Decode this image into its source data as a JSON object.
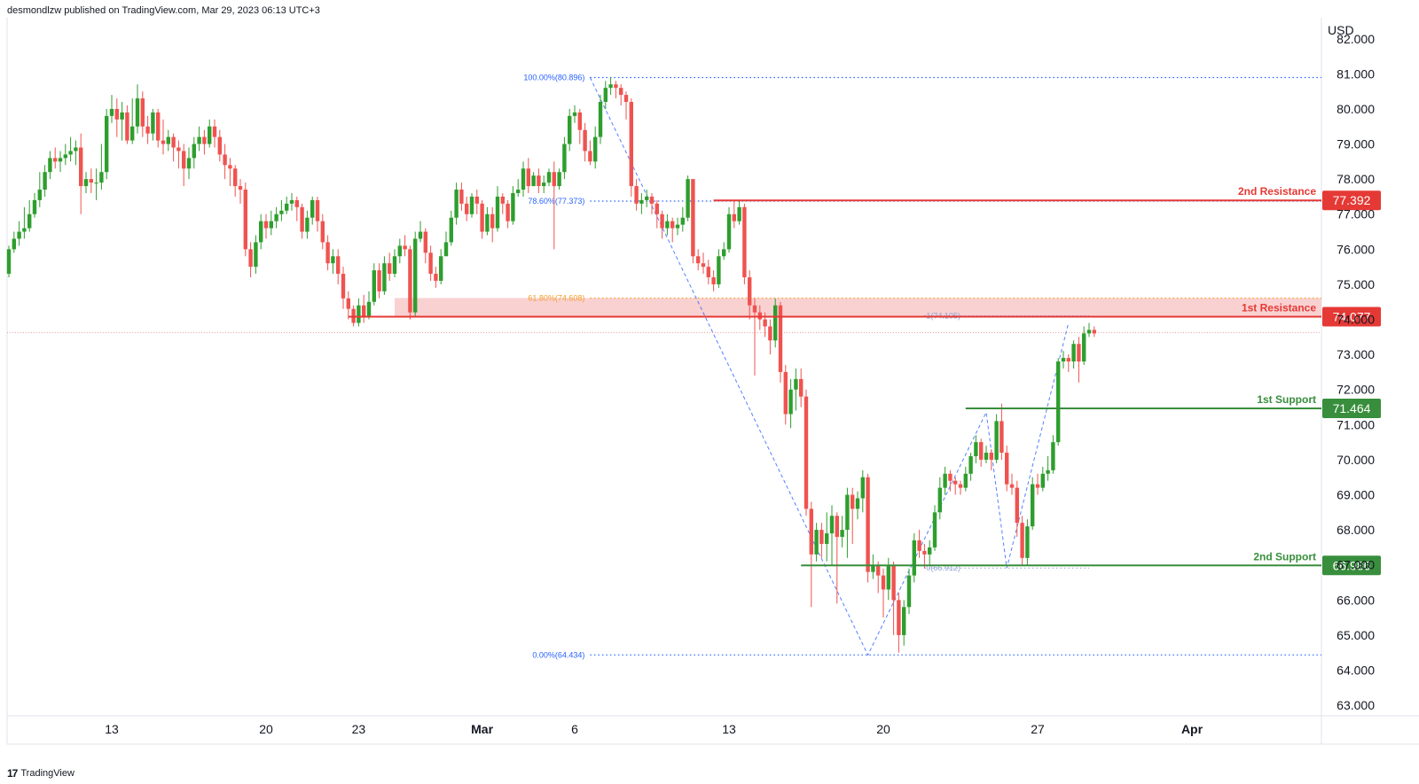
{
  "header": {
    "publisher_line": "desmondlzw published on TradingView.com, Mar 29, 2023 06:13 UTC+3"
  },
  "footer": {
    "brand": "TradingView",
    "brand_icon": "tradingview-logo-icon"
  },
  "colors": {
    "up": "#26a69a",
    "up_body": "#2e9e2e",
    "down": "#ef5350",
    "resistance": "#e53935",
    "support": "#388e3c",
    "fib": "#2962ff",
    "fib618": "#f59d2a",
    "zone": "#f8c9c9",
    "grid": "#e0e3eb"
  },
  "chart_data": {
    "type": "candlestick",
    "currency_label": "USD",
    "y_ticks": [
      82,
      81,
      80,
      79,
      78,
      77,
      76,
      75,
      74,
      73,
      72,
      71,
      70,
      69,
      68,
      67,
      66,
      65,
      64,
      63
    ],
    "y_tick_labels": [
      "82.000",
      "81.000",
      "80.000",
      "79.000",
      "78.000",
      "77.000",
      "76.000",
      "75.000",
      "74.000",
      "73.000",
      "72.000",
      "71.000",
      "70.000",
      "69.000",
      "68.000",
      "67.000",
      "66.000",
      "65.000",
      "64.000",
      "63.000"
    ],
    "ylim": [
      62.7,
      82.6
    ],
    "x_ticks": [
      {
        "label": "13",
        "bar": 20
      },
      {
        "label": "20",
        "bar": 50
      },
      {
        "label": "23",
        "bar": 68
      },
      {
        "label": "Mar",
        "bar": 92,
        "bold": true
      },
      {
        "label": "6",
        "bar": 110
      },
      {
        "label": "13",
        "bar": 140
      },
      {
        "label": "20",
        "bar": 170
      },
      {
        "label": "27",
        "bar": 200
      },
      {
        "label": "Apr",
        "bar": 230,
        "bold": true
      }
    ],
    "candles": [
      [
        76.0,
        75.3,
        76.1,
        75.2
      ],
      [
        76.3,
        76.0,
        76.5,
        75.9
      ],
      [
        76.5,
        76.3,
        76.8,
        76.1
      ],
      [
        76.6,
        76.5,
        77.2,
        76.3
      ],
      [
        77.0,
        76.6,
        77.4,
        76.5
      ],
      [
        77.4,
        77.0,
        77.6,
        76.9
      ],
      [
        77.7,
        77.4,
        78.2,
        77.2
      ],
      [
        78.2,
        77.7,
        78.4,
        77.5
      ],
      [
        78.6,
        78.2,
        78.8,
        78.0
      ],
      [
        78.5,
        78.6,
        78.9,
        78.3
      ],
      [
        78.6,
        78.5,
        78.8,
        78.2
      ],
      [
        78.7,
        78.6,
        79.0,
        78.4
      ],
      [
        78.8,
        78.7,
        79.2,
        78.5
      ],
      [
        78.9,
        78.8,
        79.1,
        78.4
      ],
      [
        77.8,
        78.9,
        79.3,
        77.0
      ],
      [
        78.0,
        77.8,
        78.2,
        77.6
      ],
      [
        77.9,
        78.0,
        78.3,
        77.6
      ],
      [
        77.9,
        77.9,
        78.3,
        77.4
      ],
      [
        78.2,
        77.9,
        79.0,
        77.7
      ],
      [
        79.8,
        78.2,
        80.0,
        78.0
      ],
      [
        80.0,
        79.8,
        80.4,
        79.6
      ],
      [
        79.7,
        80.0,
        80.3,
        79.2
      ],
      [
        79.9,
        79.7,
        80.2,
        79.1
      ],
      [
        79.1,
        79.9,
        80.1,
        79.0
      ],
      [
        79.5,
        79.1,
        80.3,
        79.0
      ],
      [
        80.3,
        79.5,
        80.7,
        79.3
      ],
      [
        79.5,
        80.3,
        80.5,
        79.2
      ],
      [
        79.3,
        79.5,
        79.8,
        79.0
      ],
      [
        79.9,
        79.3,
        80.0,
        79.1
      ],
      [
        79.1,
        79.9,
        80.0,
        78.9
      ],
      [
        79.0,
        79.1,
        79.7,
        78.7
      ],
      [
        79.2,
        79.0,
        79.4,
        78.8
      ],
      [
        78.9,
        79.2,
        79.3,
        78.5
      ],
      [
        78.8,
        78.9,
        79.1,
        78.3
      ],
      [
        78.3,
        78.8,
        79.0,
        77.8
      ],
      [
        78.6,
        78.3,
        78.9,
        78.0
      ],
      [
        79.0,
        78.6,
        79.2,
        78.3
      ],
      [
        79.2,
        79.0,
        79.5,
        78.8
      ],
      [
        79.0,
        79.2,
        79.4,
        78.7
      ],
      [
        79.5,
        79.0,
        79.7,
        78.9
      ],
      [
        79.2,
        79.5,
        79.7,
        78.9
      ],
      [
        78.7,
        79.2,
        79.4,
        78.5
      ],
      [
        78.4,
        78.7,
        79.0,
        78.0
      ],
      [
        78.3,
        78.4,
        78.6,
        77.8
      ],
      [
        77.8,
        78.3,
        78.4,
        77.5
      ],
      [
        77.7,
        77.8,
        78.0,
        77.3
      ],
      [
        76.0,
        77.7,
        77.9,
        75.8
      ],
      [
        75.5,
        76.0,
        76.2,
        75.2
      ],
      [
        76.2,
        75.5,
        76.4,
        75.3
      ],
      [
        76.8,
        76.2,
        77.0,
        76.0
      ],
      [
        76.6,
        76.8,
        77.0,
        76.3
      ],
      [
        76.8,
        76.6,
        77.1,
        76.4
      ],
      [
        77.0,
        76.8,
        77.2,
        76.6
      ],
      [
        77.1,
        77.0,
        77.4,
        76.8
      ],
      [
        77.3,
        77.1,
        77.5,
        77.0
      ],
      [
        77.4,
        77.3,
        77.6,
        77.1
      ],
      [
        77.2,
        77.4,
        77.5,
        76.8
      ],
      [
        76.5,
        77.2,
        77.3,
        76.3
      ],
      [
        76.9,
        76.5,
        77.1,
        76.3
      ],
      [
        77.4,
        76.9,
        77.5,
        76.7
      ],
      [
        76.8,
        77.4,
        77.5,
        76.5
      ],
      [
        76.2,
        76.8,
        77.0,
        76.0
      ],
      [
        75.6,
        76.2,
        76.4,
        75.4
      ],
      [
        75.8,
        75.6,
        76.0,
        75.3
      ],
      [
        75.3,
        75.8,
        76.0,
        75.0
      ],
      [
        74.6,
        75.3,
        75.5,
        74.3
      ],
      [
        74.3,
        74.6,
        74.8,
        74.0
      ],
      [
        73.9,
        74.3,
        74.4,
        73.8
      ],
      [
        74.4,
        73.9,
        74.6,
        73.8
      ],
      [
        74.1,
        74.4,
        74.7,
        73.9
      ],
      [
        74.5,
        74.1,
        74.8,
        74.0
      ],
      [
        75.4,
        74.5,
        75.6,
        74.4
      ],
      [
        74.8,
        75.4,
        75.6,
        74.6
      ],
      [
        75.6,
        74.8,
        75.8,
        74.7
      ],
      [
        75.3,
        75.6,
        75.9,
        75.1
      ],
      [
        75.8,
        75.3,
        76.0,
        75.2
      ],
      [
        76.1,
        75.8,
        76.3,
        75.6
      ],
      [
        76.0,
        76.1,
        76.4,
        75.8
      ],
      [
        74.2,
        76.0,
        76.1,
        74.0
      ],
      [
        76.3,
        74.2,
        76.5,
        74.1
      ],
      [
        76.5,
        76.3,
        76.8,
        76.2
      ],
      [
        75.9,
        76.5,
        76.6,
        75.6
      ],
      [
        75.3,
        75.9,
        76.1,
        75.1
      ],
      [
        75.1,
        75.3,
        75.5,
        74.9
      ],
      [
        75.8,
        75.1,
        76.0,
        75.0
      ],
      [
        76.2,
        75.8,
        76.5,
        76.0
      ],
      [
        76.9,
        76.2,
        77.1,
        76.1
      ],
      [
        77.7,
        76.9,
        77.9,
        76.7
      ],
      [
        77.3,
        77.7,
        77.9,
        77.1
      ],
      [
        77.0,
        77.3,
        77.5,
        76.8
      ],
      [
        77.5,
        77.0,
        77.6,
        76.9
      ],
      [
        77.3,
        77.5,
        77.7,
        77.0
      ],
      [
        76.5,
        77.3,
        77.4,
        76.3
      ],
      [
        77.0,
        76.5,
        77.2,
        76.4
      ],
      [
        76.6,
        77.0,
        77.2,
        76.2
      ],
      [
        77.5,
        76.6,
        77.8,
        76.5
      ],
      [
        77.3,
        77.5,
        77.6,
        77.0
      ],
      [
        76.8,
        77.3,
        77.4,
        76.6
      ],
      [
        77.6,
        76.8,
        77.8,
        76.7
      ],
      [
        77.7,
        77.6,
        78.0,
        77.5
      ],
      [
        78.3,
        77.7,
        78.5,
        77.5
      ],
      [
        77.8,
        78.3,
        78.6,
        77.6
      ],
      [
        78.1,
        77.8,
        78.2,
        77.8
      ],
      [
        77.8,
        78.1,
        78.3,
        77.6
      ],
      [
        77.9,
        77.8,
        78.1,
        77.6
      ],
      [
        78.2,
        77.9,
        78.3,
        77.8
      ],
      [
        77.8,
        78.2,
        78.5,
        76.0
      ],
      [
        78.2,
        77.8,
        78.3,
        77.7
      ],
      [
        79.0,
        78.2,
        79.2,
        78.0
      ],
      [
        79.8,
        79.0,
        80.0,
        78.8
      ],
      [
        79.9,
        79.8,
        80.1,
        79.6
      ],
      [
        79.4,
        79.9,
        80.0,
        79.0
      ],
      [
        78.8,
        79.4,
        79.6,
        78.5
      ],
      [
        78.5,
        78.8,
        79.1,
        78.4
      ],
      [
        79.2,
        78.5,
        79.5,
        78.3
      ],
      [
        80.2,
        79.2,
        80.4,
        79.0
      ],
      [
        80.6,
        80.2,
        80.8,
        80.0
      ],
      [
        80.7,
        80.6,
        80.9,
        80.4
      ],
      [
        80.6,
        80.7,
        80.8,
        80.3
      ],
      [
        80.4,
        80.6,
        80.7,
        80.1
      ],
      [
        80.2,
        80.4,
        80.5,
        79.7
      ],
      [
        77.8,
        80.2,
        80.3,
        77.5
      ],
      [
        77.3,
        77.8,
        78.0,
        77.1
      ],
      [
        77.4,
        77.3,
        77.6,
        77.0
      ],
      [
        77.5,
        77.4,
        77.7,
        77.2
      ],
      [
        77.3,
        77.5,
        77.6,
        77.0
      ],
      [
        77.0,
        77.3,
        77.4,
        76.6
      ],
      [
        76.6,
        77.0,
        77.1,
        76.3
      ],
      [
        76.8,
        76.6,
        77.0,
        76.4
      ],
      [
        76.6,
        76.8,
        76.9,
        76.2
      ],
      [
        76.7,
        76.6,
        76.9,
        76.4
      ],
      [
        76.9,
        76.7,
        77.2,
        76.5
      ],
      [
        78.0,
        76.9,
        78.1,
        76.8
      ],
      [
        75.8,
        78.0,
        78.0,
        75.6
      ],
      [
        75.6,
        75.8,
        76.0,
        75.4
      ],
      [
        75.5,
        75.6,
        75.9,
        75.3
      ],
      [
        75.2,
        75.5,
        75.7,
        75.0
      ],
      [
        75.0,
        75.2,
        75.4,
        74.8
      ],
      [
        75.8,
        75.0,
        76.0,
        74.9
      ],
      [
        76.0,
        75.8,
        76.2,
        75.7
      ],
      [
        77.0,
        76.0,
        77.2,
        75.9
      ],
      [
        76.8,
        77.0,
        77.4,
        76.6
      ],
      [
        77.2,
        76.8,
        77.4,
        76.7
      ],
      [
        75.2,
        77.2,
        77.3,
        75.0
      ],
      [
        74.4,
        75.2,
        75.4,
        74.0
      ],
      [
        74.2,
        74.4,
        74.6,
        72.4
      ],
      [
        74.0,
        74.2,
        74.4,
        73.7
      ],
      [
        73.8,
        74.0,
        74.2,
        73.5
      ],
      [
        73.4,
        73.8,
        74.0,
        73.0
      ],
      [
        74.4,
        73.4,
        74.6,
        73.2
      ],
      [
        72.5,
        74.4,
        74.5,
        72.2
      ],
      [
        71.3,
        72.5,
        72.7,
        71.0
      ],
      [
        72.0,
        71.3,
        72.3,
        70.9
      ],
      [
        72.3,
        72.0,
        72.6,
        71.4
      ],
      [
        71.8,
        72.3,
        72.6,
        71.5
      ],
      [
        68.6,
        71.8,
        72.0,
        68.4
      ],
      [
        67.3,
        68.6,
        68.8,
        65.8
      ],
      [
        68.0,
        67.3,
        68.2,
        67.1
      ],
      [
        67.6,
        68.0,
        68.2,
        67.2
      ],
      [
        67.9,
        67.6,
        68.5,
        67.1
      ],
      [
        68.4,
        67.9,
        68.7,
        67.0
      ],
      [
        67.8,
        68.4,
        68.5,
        65.9
      ],
      [
        68.0,
        67.8,
        68.4,
        67.5
      ],
      [
        69.0,
        68.0,
        69.2,
        67.2
      ],
      [
        68.6,
        69.0,
        69.2,
        67.6
      ],
      [
        68.9,
        68.6,
        69.1,
        68.3
      ],
      [
        69.5,
        68.9,
        69.7,
        68.5
      ],
      [
        66.8,
        69.5,
        69.6,
        66.5
      ],
      [
        67.0,
        66.8,
        67.3,
        66.6
      ],
      [
        66.7,
        67.0,
        67.1,
        66.2
      ],
      [
        66.3,
        66.7,
        66.9,
        65.5
      ],
      [
        67.0,
        66.3,
        67.2,
        66.0
      ],
      [
        66.0,
        67.0,
        67.1,
        65.0
      ],
      [
        65.0,
        66.0,
        66.2,
        64.5
      ],
      [
        65.8,
        65.0,
        66.0,
        64.7
      ],
      [
        66.7,
        65.8,
        66.9,
        65.6
      ],
      [
        67.7,
        66.7,
        67.9,
        66.5
      ],
      [
        67.4,
        67.7,
        68.0,
        67.2
      ],
      [
        67.3,
        67.4,
        67.6,
        66.9
      ],
      [
        67.5,
        67.3,
        67.7,
        67.0
      ],
      [
        68.5,
        67.5,
        68.7,
        67.4
      ],
      [
        69.2,
        68.5,
        69.5,
        68.3
      ],
      [
        69.6,
        69.2,
        69.8,
        69.0
      ],
      [
        69.4,
        69.6,
        69.7,
        69.1
      ],
      [
        69.3,
        69.4,
        69.5,
        69.0
      ],
      [
        69.2,
        69.3,
        69.4,
        69.0
      ],
      [
        69.6,
        69.2,
        69.8,
        69.1
      ],
      [
        70.1,
        69.6,
        70.2,
        69.4
      ],
      [
        70.5,
        70.1,
        70.7,
        69.9
      ],
      [
        70.0,
        70.5,
        70.6,
        69.8
      ],
      [
        70.2,
        70.0,
        70.4,
        69.9
      ],
      [
        70.0,
        70.2,
        70.3,
        69.7
      ],
      [
        71.1,
        70.0,
        71.3,
        69.9
      ],
      [
        70.2,
        71.1,
        71.6,
        70.0
      ],
      [
        69.3,
        70.2,
        70.4,
        69.1
      ],
      [
        69.2,
        69.3,
        69.6,
        69.0
      ],
      [
        68.2,
        69.2,
        69.4,
        67.8
      ],
      [
        67.2,
        68.2,
        68.4,
        67.0
      ],
      [
        68.1,
        67.2,
        68.3,
        67.0
      ],
      [
        69.3,
        68.1,
        69.5,
        68.0
      ],
      [
        69.2,
        69.3,
        69.6,
        69.0
      ],
      [
        69.6,
        69.2,
        69.8,
        69.1
      ],
      [
        69.7,
        69.6,
        70.1,
        69.4
      ],
      [
        70.5,
        69.7,
        70.7,
        69.6
      ],
      [
        72.8,
        70.5,
        72.9,
        70.4
      ],
      [
        72.9,
        72.8,
        73.1,
        72.6
      ],
      [
        72.8,
        72.9,
        73.0,
        72.5
      ],
      [
        73.3,
        72.8,
        73.4,
        72.6
      ],
      [
        72.8,
        73.3,
        73.5,
        72.2
      ],
      [
        73.6,
        72.8,
        73.8,
        72.7
      ],
      [
        73.7,
        73.6,
        73.9,
        73.5
      ],
      [
        73.6,
        73.7,
        73.8,
        73.5
      ]
    ],
    "levels": [
      {
        "name": "2nd Resistance",
        "value": 77.392,
        "label": "77.392",
        "kind": "resistance",
        "from_bar": 137
      },
      {
        "name": "1st Resistance",
        "value": 74.077,
        "label": "74.077",
        "kind": "resistance",
        "from_bar": 66
      },
      {
        "name": "1st Support",
        "value": 71.464,
        "label": "71.464",
        "kind": "support",
        "from_bar": 186
      },
      {
        "name": "2nd Support",
        "value": 66.986,
        "label": "66.986",
        "kind": "support",
        "from_bar": 154
      }
    ],
    "resistance_zone": {
      "from": 74.077,
      "to": 74.608,
      "from_bar": 75
    },
    "last_price": 73.62,
    "fib_levels": [
      {
        "label": "100.00%(80.896)",
        "value": 80.896,
        "from_bar": 113
      },
      {
        "label": "78.60%(77.373)",
        "value": 77.373,
        "from_bar": 113
      },
      {
        "label": "61.80%(74.608)",
        "value": 74.608,
        "from_bar": 113,
        "orange": true
      },
      {
        "label": "0.00%(64.434)",
        "value": 64.434,
        "from_bar": 113
      }
    ],
    "fib2_levels": [
      {
        "label": "1(74.105)",
        "value": 74.105,
        "from_bar": 178
      },
      {
        "label": "0(66.912)",
        "value": 66.912,
        "from_bar": 178
      }
    ],
    "zigzag": [
      [
        113,
        80.896
      ],
      [
        167,
        64.434
      ],
      [
        190,
        71.35
      ],
      [
        194,
        66.912
      ],
      [
        206,
        73.9
      ]
    ]
  }
}
